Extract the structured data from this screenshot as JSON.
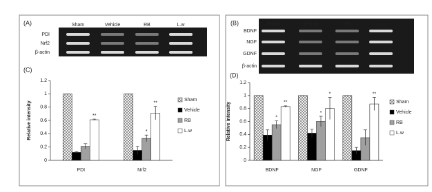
{
  "gel_panels": [
    {
      "label": "(A)",
      "lanes": [
        "Sham",
        "Vehicle",
        "RB",
        "L.w"
      ],
      "rows": [
        "PDI",
        "Nrf2",
        "β-actin"
      ]
    },
    {
      "label": "(B)",
      "lanes": [
        "Sham",
        "Vehicle",
        "RB",
        "L.w"
      ],
      "rows": [
        "BDNF",
        "NGF",
        "GDNF",
        "β-actin"
      ]
    }
  ],
  "chart_data": [
    {
      "type": "bar",
      "panel_label": "(C)",
      "y_label": "Relative intensity",
      "categories": [
        "PDI",
        "Nrf2"
      ],
      "ylim": [
        0,
        1.2
      ],
      "yticks": [
        0,
        0.2,
        0.4,
        0.6,
        0.8,
        1,
        1.2
      ],
      "series": [
        {
          "name": "Sham",
          "color": "#ffffff",
          "pattern": "crosshatch",
          "values": [
            1,
            1
          ],
          "errors": [
            0,
            0
          ],
          "significance": [
            null,
            null
          ]
        },
        {
          "name": "Vehicle",
          "color": "#000000",
          "values": [
            0.12,
            0.15
          ],
          "errors": [
            0.01,
            0.06
          ],
          "significance": [
            null,
            null
          ]
        },
        {
          "name": "RB",
          "color": "#a0a0a0",
          "values": [
            0.21,
            0.33
          ],
          "errors": [
            0.04,
            0.05
          ],
          "significance": [
            null,
            "*"
          ]
        },
        {
          "name": "L.w",
          "color": "#ffffff",
          "values": [
            0.61,
            0.71
          ],
          "errors": [
            0.01,
            0.1
          ],
          "significance": [
            "**",
            "**"
          ]
        }
      ]
    },
    {
      "type": "bar",
      "panel_label": "(D)",
      "y_label": "Relative intensity",
      "categories": [
        "BDNF",
        "NGF",
        "GDNF"
      ],
      "ylim": [
        0,
        1.2
      ],
      "yticks": [
        0,
        0.2,
        0.4,
        0.6,
        0.8,
        1,
        1.2
      ],
      "series": [
        {
          "name": "Sham",
          "color": "#ffffff",
          "pattern": "crosshatch",
          "values": [
            1,
            1,
            1
          ],
          "errors": [
            0,
            0,
            0
          ],
          "significance": [
            null,
            null,
            null
          ]
        },
        {
          "name": "Vehicle",
          "color": "#000000",
          "values": [
            0.39,
            0.42,
            0.15
          ],
          "errors": [
            0.08,
            0.06,
            0.05
          ],
          "significance": [
            null,
            null,
            null
          ]
        },
        {
          "name": "RB",
          "color": "#a0a0a0",
          "values": [
            0.55,
            0.6,
            0.35
          ],
          "errors": [
            0.06,
            0.08,
            0.12
          ],
          "significance": [
            "*",
            "*",
            null
          ]
        },
        {
          "name": "L.w",
          "color": "#ffffff",
          "values": [
            0.83,
            0.8,
            0.87
          ],
          "errors": [
            0.01,
            0.17,
            0.1
          ],
          "significance": [
            "**",
            "*",
            "**"
          ]
        }
      ]
    }
  ]
}
